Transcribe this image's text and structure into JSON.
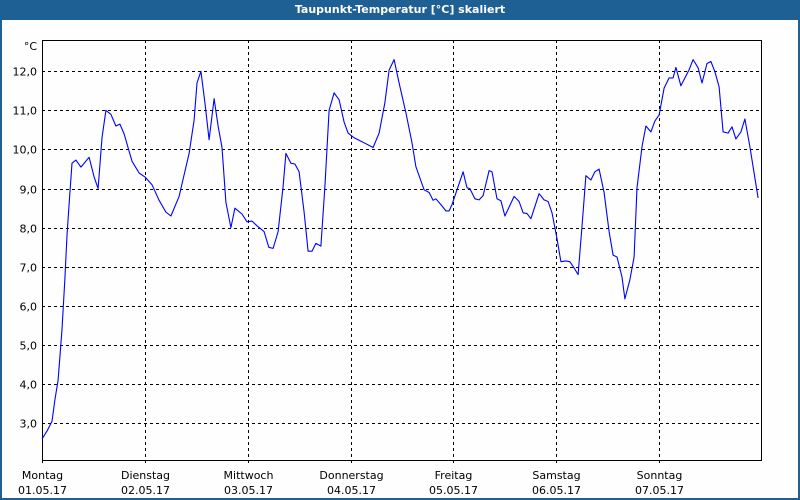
{
  "window": {
    "title": "Taupunkt-Temperatur [°C] skaliert"
  },
  "colors": {
    "titlebar": "#1f6094",
    "line": "#0000ff",
    "grid": "#000000"
  },
  "chart_data": {
    "type": "line",
    "title": "Taupunkt-Temperatur [°C] skaliert",
    "ylabel": "°C",
    "ylim": [
      2.06,
      12.8
    ],
    "xlim": [
      "2017-05-01 00:00",
      "2017-05-08 00:00"
    ],
    "grid": true,
    "yticks": [
      3,
      4,
      5,
      6,
      7,
      8,
      9,
      10,
      11,
      12
    ],
    "ytick_labels": [
      "3,0",
      "4,0",
      "5,0",
      "6,0",
      "7,0",
      "8,0",
      "9,0",
      "10,0",
      "11,0",
      "12,0"
    ],
    "xticks": [
      {
        "at": "2017-05-01 00:00",
        "day": "Montag",
        "date": "01.05.17"
      },
      {
        "at": "2017-05-02 00:00",
        "day": "Dienstag",
        "date": "02.05.17"
      },
      {
        "at": "2017-05-03 00:00",
        "day": "Mittwoch",
        "date": "03.05.17"
      },
      {
        "at": "2017-05-04 00:00",
        "day": "Donnerstag",
        "date": "04.05.17"
      },
      {
        "at": "2017-05-05 00:00",
        "day": "Freitag",
        "date": "05.05.17"
      },
      {
        "at": "2017-05-06 00:00",
        "day": "Samstag",
        "date": "06.05.17"
      },
      {
        "at": "2017-05-07 00:00",
        "day": "Sonntag",
        "date": "07.05.17"
      }
    ],
    "series": [
      {
        "color": "#0000ff",
        "points": [
          [
            "2017-05-01 00:00",
            2.6
          ],
          [
            "2017-05-01 01:10",
            2.8
          ],
          [
            "2017-05-01 02:20",
            3.05
          ],
          [
            "2017-05-01 03:00",
            3.6
          ],
          [
            "2017-05-01 03:45",
            4.1
          ],
          [
            "2017-05-01 04:40",
            5.4
          ],
          [
            "2017-05-01 05:20",
            6.7
          ],
          [
            "2017-05-01 05:50",
            7.8
          ],
          [
            "2017-05-01 06:20",
            8.6
          ],
          [
            "2017-05-01 07:00",
            9.65
          ],
          [
            "2017-05-01 07:55",
            9.73
          ],
          [
            "2017-05-01 09:05",
            9.55
          ],
          [
            "2017-05-01 11:00",
            9.8
          ],
          [
            "2017-05-01 12:10",
            9.3
          ],
          [
            "2017-05-01 13:05",
            9.0
          ],
          [
            "2017-05-01 14:00",
            10.3
          ],
          [
            "2017-05-01 14:55",
            11.0
          ],
          [
            "2017-05-01 16:05",
            10.9
          ],
          [
            "2017-05-01 17:15",
            10.6
          ],
          [
            "2017-05-01 18:10",
            10.65
          ],
          [
            "2017-05-01 19:10",
            10.4
          ],
          [
            "2017-05-01 21:00",
            9.7
          ],
          [
            "2017-05-01 22:40",
            9.4
          ],
          [
            "2017-05-02 00:00",
            9.3
          ],
          [
            "2017-05-02 01:40",
            9.1
          ],
          [
            "2017-05-02 03:20",
            8.7
          ],
          [
            "2017-05-02 04:55",
            8.4
          ],
          [
            "2017-05-02 06:05",
            8.3
          ],
          [
            "2017-05-02 08:00",
            8.8
          ],
          [
            "2017-05-02 10:20",
            9.9
          ],
          [
            "2017-05-02 11:30",
            10.75
          ],
          [
            "2017-05-02 12:10",
            11.7
          ],
          [
            "2017-05-02 13:05",
            12.0
          ],
          [
            "2017-05-02 14:00",
            11.2
          ],
          [
            "2017-05-02 15:00",
            10.25
          ],
          [
            "2017-05-02 16:10",
            11.3
          ],
          [
            "2017-05-02 17:05",
            10.6
          ],
          [
            "2017-05-02 18:00",
            10.05
          ],
          [
            "2017-05-02 18:55",
            8.65
          ],
          [
            "2017-05-02 20:05",
            8.0
          ],
          [
            "2017-05-02 21:00",
            8.5
          ],
          [
            "2017-05-02 22:40",
            8.35
          ],
          [
            "2017-05-02 23:50",
            8.15
          ],
          [
            "2017-05-03 01:00",
            8.17
          ],
          [
            "2017-05-03 02:10",
            8.05
          ],
          [
            "2017-05-03 03:50",
            7.9
          ],
          [
            "2017-05-03 04:55",
            7.5
          ],
          [
            "2017-05-03 05:55",
            7.47
          ],
          [
            "2017-05-03 07:05",
            7.9
          ],
          [
            "2017-05-03 08:15",
            9.05
          ],
          [
            "2017-05-03 08:55",
            9.9
          ],
          [
            "2017-05-03 10:05",
            9.65
          ],
          [
            "2017-05-03 11:00",
            9.63
          ],
          [
            "2017-05-03 12:00",
            9.43
          ],
          [
            "2017-05-03 13:10",
            8.4
          ],
          [
            "2017-05-03 14:05",
            7.4
          ],
          [
            "2017-05-03 15:00",
            7.4
          ],
          [
            "2017-05-03 15:55",
            7.6
          ],
          [
            "2017-05-03 17:05",
            7.53
          ],
          [
            "2017-05-03 18:00",
            9.05
          ],
          [
            "2017-05-03 19:00",
            11.0
          ],
          [
            "2017-05-03 20:10",
            11.45
          ],
          [
            "2017-05-03 21:20",
            11.27
          ],
          [
            "2017-05-03 22:30",
            10.7
          ],
          [
            "2017-05-03 23:25",
            10.42
          ],
          [
            "2017-05-04 00:50",
            10.3
          ],
          [
            "2017-05-04 02:40",
            10.2
          ],
          [
            "2017-05-04 05:15",
            10.05
          ],
          [
            "2017-05-04 06:40",
            10.42
          ],
          [
            "2017-05-04 08:00",
            11.2
          ],
          [
            "2017-05-04 09:00",
            12.03
          ],
          [
            "2017-05-04 10:10",
            12.3
          ],
          [
            "2017-05-04 11:20",
            11.7
          ],
          [
            "2017-05-04 12:55",
            10.94
          ],
          [
            "2017-05-04 14:20",
            10.17
          ],
          [
            "2017-05-04 15:15",
            9.56
          ],
          [
            "2017-05-04 16:10",
            9.27
          ],
          [
            "2017-05-04 17:10",
            8.97
          ],
          [
            "2017-05-04 18:20",
            8.9
          ],
          [
            "2017-05-04 19:15",
            8.7
          ],
          [
            "2017-05-04 19:55",
            8.74
          ],
          [
            "2017-05-04 21:05",
            8.59
          ],
          [
            "2017-05-04 22:15",
            8.43
          ],
          [
            "2017-05-04 23:00",
            8.43
          ],
          [
            "2017-05-04 23:40",
            8.59
          ],
          [
            "2017-05-05 00:50",
            8.97
          ],
          [
            "2017-05-05 02:15",
            9.43
          ],
          [
            "2017-05-05 03:10",
            9.02
          ],
          [
            "2017-05-05 03:50",
            9.0
          ],
          [
            "2017-05-05 05:00",
            8.74
          ],
          [
            "2017-05-05 06:00",
            8.71
          ],
          [
            "2017-05-05 06:55",
            8.82
          ],
          [
            "2017-05-05 08:20",
            9.46
          ],
          [
            "2017-05-05 09:00",
            9.43
          ],
          [
            "2017-05-05 10:10",
            8.74
          ],
          [
            "2017-05-05 11:05",
            8.69
          ],
          [
            "2017-05-05 12:00",
            8.3
          ],
          [
            "2017-05-05 14:10",
            8.8
          ],
          [
            "2017-05-05 15:20",
            8.67
          ],
          [
            "2017-05-05 16:15",
            8.38
          ],
          [
            "2017-05-05 17:10",
            8.36
          ],
          [
            "2017-05-05 18:05",
            8.23
          ],
          [
            "2017-05-05 20:00",
            8.87
          ],
          [
            "2017-05-05 21:10",
            8.71
          ],
          [
            "2017-05-05 22:05",
            8.67
          ],
          [
            "2017-05-05 23:00",
            8.38
          ],
          [
            "2017-05-06 00:10",
            7.72
          ],
          [
            "2017-05-06 01:05",
            7.13
          ],
          [
            "2017-05-06 02:15",
            7.15
          ],
          [
            "2017-05-06 03:10",
            7.13
          ],
          [
            "2017-05-06 04:10",
            6.97
          ],
          [
            "2017-05-06 05:05",
            6.8
          ],
          [
            "2017-05-06 06:00",
            8.03
          ],
          [
            "2017-05-06 06:55",
            9.33
          ],
          [
            "2017-05-06 08:05",
            9.22
          ],
          [
            "2017-05-06 09:00",
            9.43
          ],
          [
            "2017-05-06 10:00",
            9.5
          ],
          [
            "2017-05-06 11:10",
            8.9
          ],
          [
            "2017-05-06 12:20",
            7.9
          ],
          [
            "2017-05-06 13:15",
            7.3
          ],
          [
            "2017-05-06 14:10",
            7.25
          ],
          [
            "2017-05-06 15:20",
            6.74
          ],
          [
            "2017-05-06 16:00",
            6.18
          ],
          [
            "2017-05-06 17:10",
            6.67
          ],
          [
            "2017-05-06 18:10",
            7.25
          ],
          [
            "2017-05-06 18:50",
            9.02
          ],
          [
            "2017-05-06 20:00",
            10.07
          ],
          [
            "2017-05-06 20:55",
            10.6
          ],
          [
            "2017-05-06 22:05",
            10.45
          ],
          [
            "2017-05-06 23:00",
            10.73
          ],
          [
            "2017-05-07 00:00",
            10.88
          ],
          [
            "2017-05-07 01:10",
            11.57
          ],
          [
            "2017-05-07 02:20",
            11.83
          ],
          [
            "2017-05-07 03:15",
            11.83
          ],
          [
            "2017-05-07 03:55",
            12.1
          ],
          [
            "2017-05-07 05:05",
            11.63
          ],
          [
            "2017-05-07 07:00",
            12.04
          ],
          [
            "2017-05-07 07:55",
            12.3
          ],
          [
            "2017-05-07 09:05",
            12.09
          ],
          [
            "2017-05-07 10:00",
            11.7
          ],
          [
            "2017-05-07 11:10",
            12.2
          ],
          [
            "2017-05-07 12:05",
            12.25
          ],
          [
            "2017-05-07 13:00",
            11.99
          ],
          [
            "2017-05-07 14:00",
            11.6
          ],
          [
            "2017-05-07 14:55",
            10.45
          ],
          [
            "2017-05-07 16:05",
            10.42
          ],
          [
            "2017-05-07 17:00",
            10.58
          ],
          [
            "2017-05-07 17:55",
            10.27
          ],
          [
            "2017-05-07 19:05",
            10.45
          ],
          [
            "2017-05-07 20:00",
            10.78
          ],
          [
            "2017-05-07 21:10",
            10.07
          ],
          [
            "2017-05-07 22:20",
            9.27
          ],
          [
            "2017-05-07 23:05",
            8.76
          ]
        ]
      }
    ]
  }
}
